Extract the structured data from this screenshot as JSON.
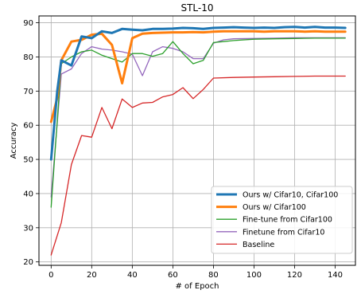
{
  "chart_data": {
    "type": "line",
    "title": "STL-10",
    "xlabel": "# of Epoch",
    "ylabel": "Accuracy",
    "xlim": [
      -6,
      150
    ],
    "ylim": [
      19,
      92
    ],
    "xticks": [
      0,
      20,
      40,
      60,
      80,
      100,
      120,
      140
    ],
    "yticks": [
      20,
      30,
      40,
      50,
      60,
      70,
      80,
      90
    ],
    "grid": true,
    "legend_position": "lower-right",
    "series": [
      {
        "name": "Ours w/ Cifar10, Cifar100",
        "color": "#1f77b4",
        "width": 3,
        "x": [
          0,
          3,
          5,
          10,
          15,
          20,
          25,
          30,
          35,
          40,
          45,
          50,
          55,
          60,
          65,
          70,
          75,
          80,
          85,
          90,
          95,
          100,
          105,
          110,
          115,
          120,
          125,
          130,
          135,
          140,
          145
        ],
        "y": [
          50,
          70,
          79,
          77.5,
          86,
          85.5,
          87.5,
          87,
          88.2,
          88,
          87.8,
          88.2,
          88.2,
          88.3,
          88.5,
          88.4,
          88.2,
          88.5,
          88.6,
          88.7,
          88.6,
          88.5,
          88.6,
          88.5,
          88.7,
          88.8,
          88.6,
          88.8,
          88.6,
          88.6,
          88.5
        ]
      },
      {
        "name": "Ours w/ Cifar100",
        "color": "#ff7f0e",
        "width": 3,
        "x": [
          0,
          3,
          5,
          10,
          15,
          20,
          25,
          30,
          35,
          40,
          45,
          50,
          55,
          60,
          65,
          70,
          75,
          80,
          85,
          90,
          95,
          100,
          105,
          110,
          115,
          120,
          125,
          130,
          135,
          140,
          145
        ],
        "y": [
          61,
          68,
          79,
          84.5,
          85,
          86.5,
          86.8,
          83.5,
          72.3,
          85.5,
          86.8,
          87,
          87.1,
          87.2,
          87.2,
          87.3,
          87.2,
          87.4,
          87.5,
          87.5,
          87.5,
          87.5,
          87.4,
          87.5,
          87.5,
          87.5,
          87.4,
          87.5,
          87.4,
          87.4,
          87.4
        ]
      },
      {
        "name": "Fine-tune from Cifar100",
        "color": "#2ca02c",
        "width": 1.3,
        "x": [
          0,
          5,
          10,
          15,
          20,
          25,
          30,
          35,
          40,
          45,
          50,
          55,
          60,
          65,
          70,
          75,
          80,
          85,
          90,
          100,
          110,
          120,
          130,
          140,
          145
        ],
        "y": [
          36,
          78,
          80,
          81.5,
          82,
          80.5,
          79.5,
          78.5,
          81,
          81,
          80.2,
          81,
          84.5,
          81,
          78,
          79,
          84.2,
          84.5,
          84.8,
          85.2,
          85.3,
          85.4,
          85.5,
          85.5,
          85.5
        ]
      },
      {
        "name": "Finetune from Cifar10",
        "color": "#9467bd",
        "width": 1.3,
        "x": [
          0,
          5,
          10,
          15,
          20,
          25,
          30,
          35,
          40,
          45,
          50,
          55,
          60,
          65,
          70,
          75,
          80,
          85,
          90,
          100,
          110,
          120,
          130,
          140,
          145
        ],
        "y": [
          39,
          75,
          76.5,
          81,
          83,
          82.3,
          82,
          81.5,
          80.8,
          74.5,
          81.5,
          83,
          82.5,
          81.5,
          79.5,
          79.5,
          84,
          85,
          85.3,
          85.4,
          85.5,
          85.6,
          85.6,
          85.6,
          85.6
        ]
      },
      {
        "name": "Baseline",
        "color": "#d62728",
        "width": 1.3,
        "x": [
          0,
          5,
          10,
          15,
          20,
          25,
          30,
          35,
          40,
          45,
          50,
          55,
          60,
          65,
          70,
          75,
          80,
          90,
          100,
          110,
          120,
          130,
          140,
          145
        ],
        "y": [
          22,
          31.5,
          48.5,
          57,
          56.5,
          65.2,
          59,
          67.7,
          65.2,
          66.5,
          66.7,
          68.3,
          69,
          71,
          67.8,
          70.5,
          73.8,
          74,
          74.1,
          74.2,
          74.3,
          74.4,
          74.4,
          74.4
        ]
      }
    ]
  }
}
